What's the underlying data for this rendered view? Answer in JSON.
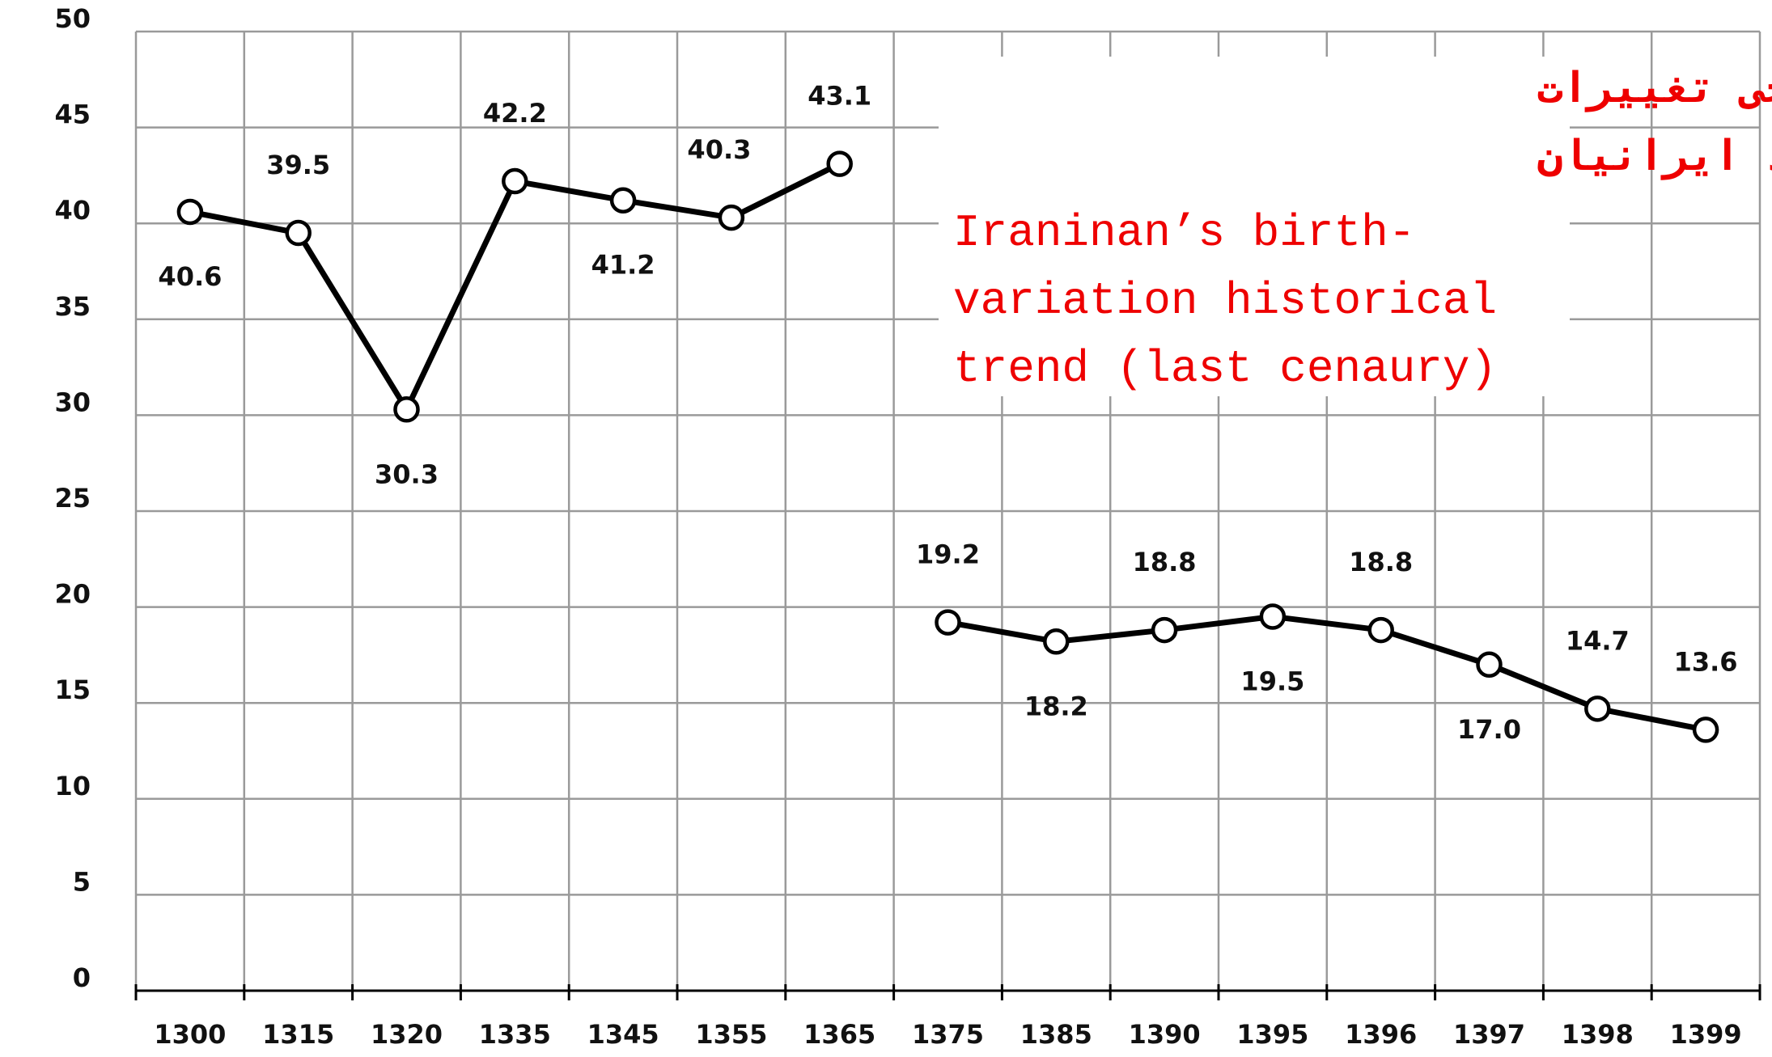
{
  "chart_data": {
    "type": "line",
    "title": [
      "روند تاریخی تغییرات",
      "موالید ایرانیان"
    ],
    "subtitle": [
      "Iraninan’s birth-",
      "variation historical",
      "trend (last cenaury)"
    ],
    "categories": [
      "1300",
      "1315",
      "1320",
      "1335",
      "1345",
      "1355",
      "1365",
      "1375",
      "1385",
      "1390",
      "1395",
      "1396",
      "1397",
      "1398",
      "1399"
    ],
    "series": [
      {
        "color": "#000000",
        "values": [
          40.6,
          39.5,
          30.3,
          42.2,
          41.2,
          40.3,
          43.1,
          null,
          null,
          null,
          null,
          null,
          null,
          null,
          null
        ]
      },
      {
        "color": "#000000",
        "values": [
          null,
          null,
          null,
          null,
          null,
          null,
          null,
          19.2,
          18.2,
          18.8,
          19.5,
          18.8,
          17.0,
          14.7,
          13.6
        ],
        "value_labels": [
          null,
          null,
          null,
          null,
          null,
          null,
          null,
          "19.2",
          "18.2",
          "18.8",
          "19.5",
          "18.8",
          "17.0",
          "14.7",
          "13.6"
        ]
      }
    ],
    "ylim": [
      0,
      50
    ],
    "yticks": [
      0,
      5,
      10,
      15,
      20,
      25,
      30,
      35,
      40,
      45,
      50
    ],
    "grid": true,
    "title_color": "#ee0000"
  }
}
